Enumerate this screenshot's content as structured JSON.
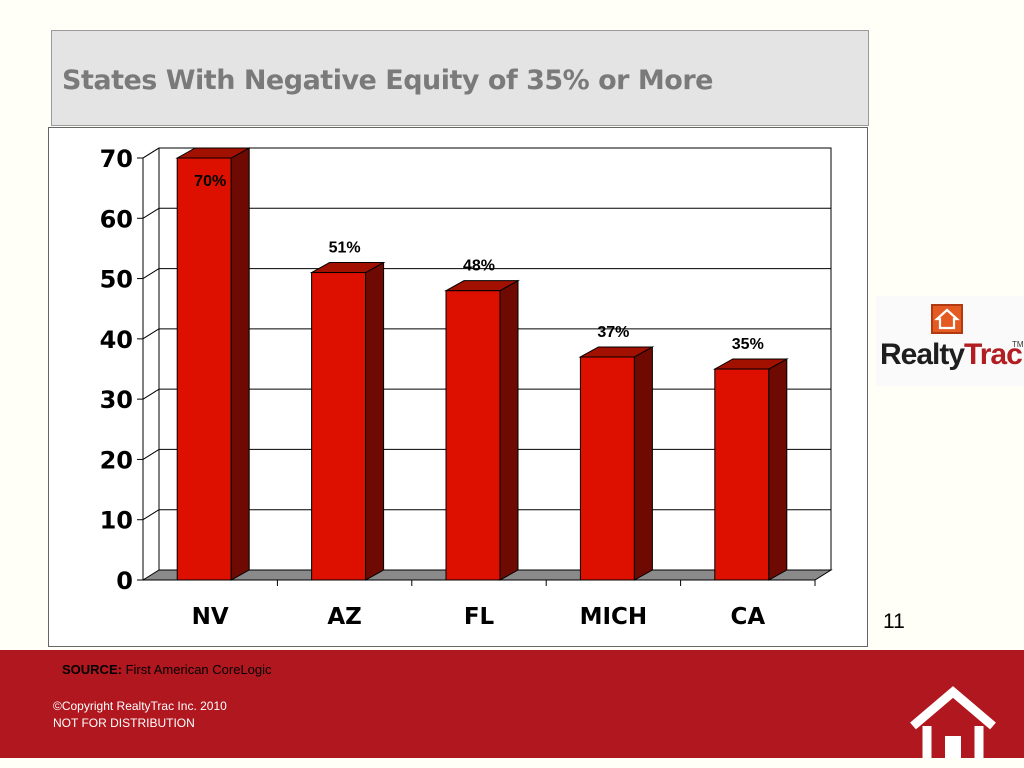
{
  "slide": {
    "title": "States With Negative Equity of 35% or More",
    "page_number": "11",
    "logo_text_left": "Realty",
    "logo_text_right": "Trac",
    "logo_tm": "TM",
    "source_label": "SOURCE:",
    "source_value": "First American CoreLogic",
    "copyright": "©Copyright RealtyTrac Inc. 2010",
    "notice": "NOT FOR DISTRIBUTION"
  },
  "colors": {
    "bar_front": "#dd1000",
    "bar_side": "#6e0a02",
    "bar_top": "#a21100",
    "floor": "#8a8a8a",
    "footer": "#b1171f",
    "title_box": "#e4e4e4"
  },
  "chart_data": {
    "type": "bar",
    "categories": [
      "NV",
      "AZ",
      "FL",
      "MICH",
      "CA"
    ],
    "values": [
      70,
      51,
      48,
      37,
      35
    ],
    "data_labels": [
      "70%",
      "51%",
      "48%",
      "37%",
      "35%"
    ],
    "yticks": [
      "0",
      "10",
      "20",
      "30",
      "40",
      "50",
      "60",
      "70"
    ],
    "ylim": [
      0,
      70
    ],
    "grid": true,
    "style": "3d-column"
  }
}
